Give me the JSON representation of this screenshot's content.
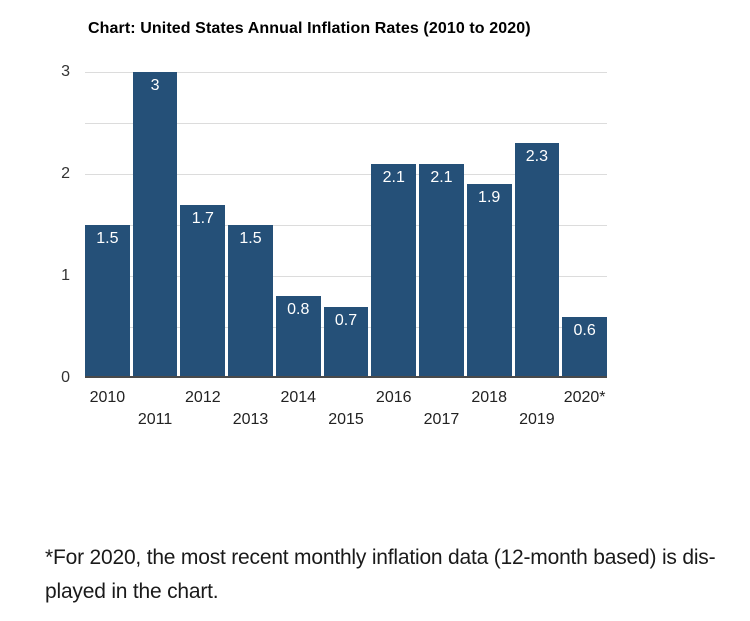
{
  "page": {
    "footnote_lines": [
      "*For 2020, the most recent monthly inflation data (12-month based) is dis-",
      "played in the chart."
    ]
  },
  "chart_data": {
    "type": "bar",
    "title": "Chart: United States Annual Inflation Rates (2010 to 2020)",
    "categories": [
      "2010",
      "2011",
      "2012",
      "2013",
      "2014",
      "2015",
      "2016",
      "2017",
      "2018",
      "2019",
      "2020*"
    ],
    "values": [
      1.5,
      3,
      1.7,
      1.5,
      0.8,
      0.7,
      2.1,
      2.1,
      1.9,
      2.3,
      0.6
    ],
    "value_labels": [
      "1.5",
      "3",
      "1.7",
      "1.5",
      "0.8",
      "0.7",
      "2.1",
      "2.1",
      "1.9",
      "2.3",
      "0.6"
    ],
    "xlabel": "",
    "ylabel": "",
    "y_ticks": [
      0,
      1,
      2,
      3
    ],
    "ylim": [
      0,
      3
    ],
    "gridline_step": 0.5,
    "grid": "on",
    "legend": "none",
    "colors": {
      "bar": "#255078",
      "grid": "#dcdcdc",
      "axis": "#4a4a4a",
      "value_label": "#ffffff",
      "y_tick_label": "#333333",
      "x_tick_label": "#222222"
    }
  }
}
